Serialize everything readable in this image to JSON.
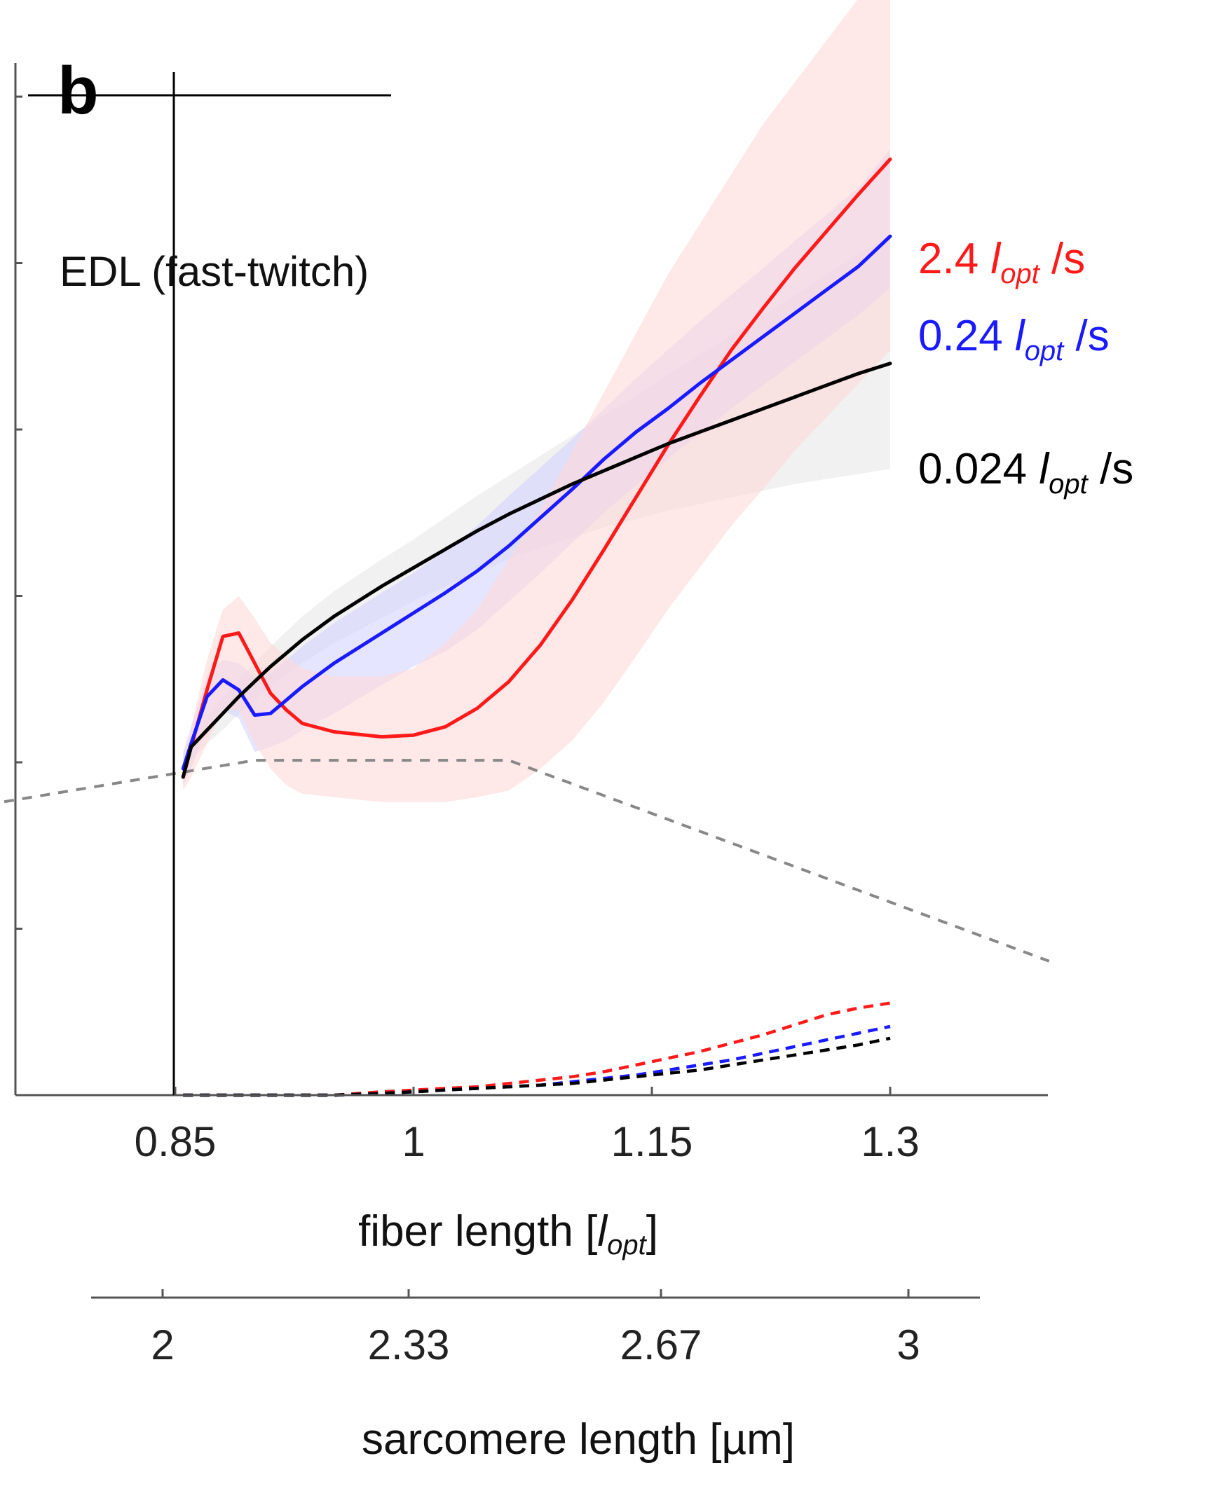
{
  "chart_data": {
    "type": "line",
    "panel_label": "b",
    "annotation": "EDL (fast-twitch)",
    "xlabel": {
      "main": "fiber length [",
      "sym": "l",
      "sub": "opt",
      "end": "]"
    },
    "x2label": "sarcomere length [µm]",
    "xlim": [
      0.55,
      1.4
    ],
    "ylim": [
      0,
      6.0
    ],
    "x_ticks": [
      0.85,
      1.0,
      1.15,
      1.3
    ],
    "x_tick_labels": [
      "0.85",
      "1",
      "1.15",
      "1.3"
    ],
    "x2_ticks": [
      2.0,
      2.33,
      2.67,
      3.0
    ],
    "x2_tick_labels": [
      "2",
      "2.33",
      "2.67",
      "3"
    ],
    "x2_lim": [
      1.7,
      3.1
    ],
    "y_ticks": [
      0,
      1,
      2,
      3,
      4,
      5,
      6
    ],
    "colors": {
      "red": "#ff1a1a",
      "blue": "#1a1aff",
      "black": "#000000",
      "gray": "#888888",
      "red_band": "#ffd9d9",
      "blue_band": "#d4d4ff",
      "black_band": "#e8e8e8"
    },
    "series": [
      {
        "name_value": "2.4",
        "name_sym": "l",
        "name_sub": "opt",
        "name_unit": "/s",
        "color": "red",
        "x": [
          0.855,
          0.86,
          0.87,
          0.88,
          0.89,
          0.9,
          0.91,
          0.92,
          0.93,
          0.95,
          0.98,
          1.0,
          1.02,
          1.04,
          1.06,
          1.08,
          1.1,
          1.12,
          1.14,
          1.16,
          1.18,
          1.2,
          1.22,
          1.24,
          1.26,
          1.28,
          1.3
        ],
        "y": [
          1.9,
          2.08,
          2.42,
          2.74,
          2.76,
          2.58,
          2.4,
          2.3,
          2.22,
          2.17,
          2.14,
          2.15,
          2.2,
          2.31,
          2.47,
          2.69,
          2.96,
          3.26,
          3.57,
          3.88,
          4.17,
          4.45,
          4.7,
          4.94,
          5.16,
          5.38,
          5.59
        ],
        "band_upper": [
          1.97,
          2.2,
          2.6,
          2.9,
          2.98,
          2.85,
          2.7,
          2.62,
          2.55,
          2.5,
          2.5,
          2.55,
          2.7,
          2.9,
          3.2,
          3.5,
          3.85,
          4.2,
          4.55,
          4.9,
          5.2,
          5.5,
          5.8,
          6.05,
          6.3,
          6.55,
          6.78
        ],
        "band_lower": [
          1.82,
          1.9,
          2.1,
          2.3,
          2.3,
          2.1,
          1.95,
          1.85,
          1.8,
          1.78,
          1.75,
          1.75,
          1.75,
          1.78,
          1.82,
          1.95,
          2.12,
          2.35,
          2.62,
          2.9,
          3.15,
          3.4,
          3.62,
          3.85,
          4.05,
          4.25,
          4.45
        ],
        "passive_y": [
          0.0,
          0.0,
          0.0,
          0.0,
          0.0,
          0.0,
          0.0,
          0.0,
          0.0,
          0.0,
          0.02,
          0.03,
          0.04,
          0.05,
          0.07,
          0.09,
          0.11,
          0.14,
          0.18,
          0.22,
          0.26,
          0.31,
          0.36,
          0.42,
          0.48,
          0.52,
          0.55
        ]
      },
      {
        "name_value": "0.24",
        "name_sym": "l",
        "name_sub": "opt",
        "name_unit": "/s",
        "color": "blue",
        "x": [
          0.855,
          0.86,
          0.87,
          0.88,
          0.89,
          0.9,
          0.91,
          0.92,
          0.93,
          0.95,
          0.98,
          1.0,
          1.02,
          1.04,
          1.06,
          1.08,
          1.1,
          1.12,
          1.14,
          1.16,
          1.18,
          1.2,
          1.22,
          1.24,
          1.26,
          1.28,
          1.3
        ],
        "y": [
          1.95,
          2.1,
          2.38,
          2.48,
          2.42,
          2.27,
          2.28,
          2.36,
          2.44,
          2.58,
          2.76,
          2.88,
          3.0,
          3.13,
          3.28,
          3.45,
          3.62,
          3.8,
          3.96,
          4.1,
          4.25,
          4.39,
          4.53,
          4.67,
          4.81,
          4.95,
          5.13
        ],
        "band_upper": [
          2.05,
          2.2,
          2.5,
          2.6,
          2.58,
          2.5,
          2.52,
          2.6,
          2.68,
          2.82,
          3.0,
          3.12,
          3.25,
          3.4,
          3.58,
          3.75,
          3.92,
          4.1,
          4.28,
          4.45,
          4.62,
          4.78,
          4.94,
          5.1,
          5.26,
          5.42,
          5.65
        ],
        "band_lower": [
          1.85,
          1.95,
          2.2,
          2.3,
          2.25,
          2.05,
          2.08,
          2.12,
          2.18,
          2.28,
          2.45,
          2.56,
          2.65,
          2.78,
          2.95,
          3.12,
          3.3,
          3.48,
          3.64,
          3.8,
          3.95,
          4.1,
          4.24,
          4.38,
          4.52,
          4.66,
          4.82
        ],
        "passive_y": [
          0.0,
          0.0,
          0.0,
          0.0,
          0.0,
          0.0,
          0.0,
          0.0,
          0.0,
          0.0,
          0.01,
          0.02,
          0.03,
          0.04,
          0.05,
          0.06,
          0.08,
          0.1,
          0.12,
          0.15,
          0.18,
          0.21,
          0.25,
          0.29,
          0.33,
          0.37,
          0.41
        ]
      },
      {
        "name_value": "0.024",
        "name_sym": "l",
        "name_sub": "opt",
        "name_unit": "/s",
        "color": "black",
        "x": [
          0.855,
          0.86,
          0.87,
          0.88,
          0.89,
          0.9,
          0.91,
          0.92,
          0.93,
          0.95,
          0.98,
          1.0,
          1.02,
          1.04,
          1.06,
          1.08,
          1.1,
          1.12,
          1.14,
          1.16,
          1.18,
          1.2,
          1.22,
          1.24,
          1.26,
          1.28,
          1.3
        ],
        "y": [
          1.9,
          2.08,
          2.18,
          2.28,
          2.38,
          2.47,
          2.56,
          2.64,
          2.72,
          2.86,
          3.04,
          3.15,
          3.26,
          3.37,
          3.47,
          3.56,
          3.65,
          3.73,
          3.81,
          3.89,
          3.96,
          4.03,
          4.1,
          4.17,
          4.24,
          4.31,
          4.37
        ],
        "band_upper": [
          1.95,
          2.15,
          2.26,
          2.38,
          2.48,
          2.58,
          2.68,
          2.77,
          2.86,
          3.01,
          3.2,
          3.32,
          3.45,
          3.58,
          3.7,
          3.82,
          3.94,
          4.06,
          4.18,
          4.3,
          4.42,
          4.54,
          4.66,
          4.78,
          4.9,
          5.02,
          5.14
        ],
        "band_lower": [
          1.85,
          2.0,
          2.1,
          2.18,
          2.28,
          2.36,
          2.44,
          2.51,
          2.58,
          2.7,
          2.85,
          2.95,
          3.04,
          3.12,
          3.2,
          3.27,
          3.33,
          3.39,
          3.44,
          3.49,
          3.53,
          3.57,
          3.61,
          3.65,
          3.68,
          3.71,
          3.74
        ],
        "passive_y": [
          0.0,
          0.0,
          0.0,
          0.0,
          0.0,
          0.0,
          0.0,
          0.0,
          0.0,
          0.0,
          0.01,
          0.02,
          0.03,
          0.04,
          0.05,
          0.06,
          0.07,
          0.09,
          0.11,
          0.13,
          0.15,
          0.18,
          0.21,
          0.24,
          0.27,
          0.3,
          0.34
        ]
      }
    ],
    "force_length_curve": {
      "color": "gray",
      "x": [
        0.55,
        0.9,
        1.06,
        1.4
      ],
      "y": [
        1.45,
        2.0,
        2.0,
        0.8
      ]
    }
  }
}
